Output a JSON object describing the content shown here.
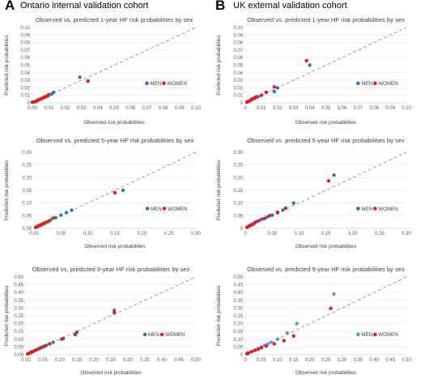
{
  "figure": {
    "panel_a": {
      "letter": "A",
      "label": "Ontario internal validation cohort"
    },
    "panel_b": {
      "letter": "B",
      "label": "UK external validation cohort"
    }
  },
  "chart_data": [
    {
      "id": "a1",
      "type": "scatter",
      "title": "Observed vs. predicted 1-year HF risk probabilities by sex",
      "xlabel": "Observed risk probabilities",
      "ylabel": "Predicted risk probabilities",
      "xlim": [
        0,
        0.1
      ],
      "ylim": [
        0,
        0.1
      ],
      "xticks": [
        "0.00",
        "0.01",
        "0.02",
        "0.03",
        "0.04",
        "0.05",
        "0.06",
        "0.07",
        "0.08",
        "0.09",
        "0.10"
      ],
      "yticks": [
        "0",
        "0.01",
        "0.02",
        "0.03",
        "0.04",
        "0.05",
        "0.06",
        "0.07",
        "0.08",
        "0.09",
        "0.10"
      ],
      "reference_line": "y = x (dashed)",
      "legend_position": "right",
      "series": [
        {
          "name": "MEN",
          "color": "#2e75b6",
          "x": [
            0.001,
            0.002,
            0.003,
            0.004,
            0.005,
            0.006,
            0.007,
            0.008,
            0.009,
            0.01,
            0.012,
            0.013,
            0.029
          ],
          "y": [
            0.001,
            0.002,
            0.003,
            0.004,
            0.005,
            0.006,
            0.007,
            0.008,
            0.009,
            0.01,
            0.012,
            0.014,
            0.034
          ]
        },
        {
          "name": "WOMEN",
          "color": "#e0201b",
          "x": [
            0.0,
            0.001,
            0.002,
            0.003,
            0.004,
            0.005,
            0.006,
            0.007,
            0.008,
            0.009,
            0.01,
            0.034
          ],
          "y": [
            0.001,
            0.001,
            0.002,
            0.003,
            0.004,
            0.005,
            0.006,
            0.007,
            0.008,
            0.009,
            0.011,
            0.029
          ]
        }
      ]
    },
    {
      "id": "b1",
      "type": "scatter",
      "title": "Observed vs. predicted 1-year HF risk probabilities by sex",
      "xlabel": "Observed risk probabilities",
      "ylabel": "Predicted risk probabilities",
      "xlim": [
        0,
        0.1
      ],
      "ylim": [
        0,
        0.1
      ],
      "xticks": [
        "0",
        "0.01",
        "0.02",
        "0.03",
        "0.04",
        "0.05",
        "0.06",
        "0.07",
        "0.08",
        "0.09",
        "0.10"
      ],
      "yticks": [
        "0",
        "0.01",
        "0.02",
        "0.03",
        "0.04",
        "0.05",
        "0.06",
        "0.07",
        "0.08",
        "0.09",
        "0.10"
      ],
      "reference_line": "y = x (dashed)",
      "legend_position": "right",
      "series": [
        {
          "name": "MEN",
          "color": "#2e75b6",
          "x": [
            0.001,
            0.002,
            0.003,
            0.004,
            0.005,
            0.006,
            0.008,
            0.018,
            0.02,
            0.04
          ],
          "y": [
            0.001,
            0.002,
            0.003,
            0.004,
            0.006,
            0.007,
            0.008,
            0.015,
            0.02,
            0.05
          ]
        },
        {
          "name": "WOMEN",
          "color": "#e0201b",
          "x": [
            0.001,
            0.002,
            0.003,
            0.004,
            0.006,
            0.007,
            0.01,
            0.013,
            0.018,
            0.038
          ],
          "y": [
            0.001,
            0.002,
            0.003,
            0.005,
            0.006,
            0.008,
            0.01,
            0.014,
            0.021,
            0.056
          ]
        }
      ]
    },
    {
      "id": "a2",
      "type": "scatter",
      "title": "Observed vs. predicted 5-year HF risk probabilities by sex",
      "xlabel": "Observed risk probabilities",
      "ylabel": "Predicted risk probabilities",
      "xlim": [
        0,
        0.3
      ],
      "ylim": [
        0,
        0.3
      ],
      "xticks": [
        "0.00",
        "0.05",
        "0.10",
        "0.15",
        "0.20",
        "0.25",
        "0.30"
      ],
      "yticks": [
        "0.00",
        "0.05",
        "0.10",
        "0.15",
        "0.20",
        "0.25",
        "0.30"
      ],
      "reference_line": "y = x (dashed)",
      "legend_position": "right",
      "series": [
        {
          "name": "MEN",
          "color": "#2e75b6",
          "x": [
            0.005,
            0.008,
            0.01,
            0.013,
            0.016,
            0.02,
            0.025,
            0.03,
            0.04,
            0.05,
            0.06,
            0.07,
            0.165
          ],
          "y": [
            0.006,
            0.008,
            0.011,
            0.014,
            0.017,
            0.021,
            0.026,
            0.032,
            0.042,
            0.052,
            0.062,
            0.072,
            0.15
          ]
        },
        {
          "name": "WOMEN",
          "color": "#e0201b",
          "x": [
            0.003,
            0.005,
            0.007,
            0.009,
            0.012,
            0.015,
            0.018,
            0.022,
            0.027,
            0.035,
            0.15
          ],
          "y": [
            0.004,
            0.006,
            0.008,
            0.01,
            0.013,
            0.016,
            0.019,
            0.023,
            0.028,
            0.04,
            0.14
          ]
        }
      ]
    },
    {
      "id": "b2",
      "type": "scatter",
      "title": "Observed vs. predicted 5-year HF risk probabilities by sex",
      "xlabel": "Observed risk probabilities",
      "ylabel": "Predicted risk probabilities",
      "xlim": [
        0,
        0.3
      ],
      "ylim": [
        0,
        0.3
      ],
      "xticks": [
        "0",
        "0.05",
        "0.10",
        "0.15",
        "0.20",
        "0.25",
        "0.30"
      ],
      "yticks": [
        "0",
        "0.05",
        "0.10",
        "0.15",
        "0.20",
        "0.25",
        "0.30"
      ],
      "reference_line": "y = x (dashed)",
      "legend_position": "right",
      "series": [
        {
          "name": "MEN",
          "color": "#2e75b6",
          "x": [
            0.004,
            0.008,
            0.012,
            0.016,
            0.02,
            0.03,
            0.04,
            0.05,
            0.06,
            0.07,
            0.09,
            0.165
          ],
          "y": [
            0.005,
            0.01,
            0.014,
            0.02,
            0.026,
            0.036,
            0.044,
            0.052,
            0.064,
            0.072,
            0.1,
            0.21
          ]
        },
        {
          "name": "WOMEN",
          "color": "#e0201b",
          "x": [
            0.003,
            0.006,
            0.01,
            0.014,
            0.018,
            0.025,
            0.035,
            0.045,
            0.06,
            0.075,
            0.155
          ],
          "y": [
            0.004,
            0.008,
            0.012,
            0.016,
            0.022,
            0.03,
            0.038,
            0.05,
            0.062,
            0.08,
            0.187
          ]
        }
      ]
    },
    {
      "id": "a3",
      "type": "scatter",
      "title": "Observed vs. predicted 9-year HF risk probabilities by sex",
      "xlabel": "Observed risk probabilities",
      "ylabel": "Predicted risk probabilities",
      "xlim": [
        0,
        0.5
      ],
      "ylim": [
        0,
        0.5
      ],
      "xticks": [
        "0.00",
        "0.05",
        "0.10",
        "0.15",
        "0.20",
        "0.25",
        "0.30",
        "0.35",
        "0.40",
        "0.45",
        "0.50"
      ],
      "yticks": [
        "0.00",
        "0.05",
        "0.10",
        "0.15",
        "0.20",
        "0.25",
        "0.30",
        "0.35",
        "0.40",
        "0.45",
        "0.50"
      ],
      "reference_line": "y = x (dashed)",
      "legend_position": "right",
      "series": [
        {
          "name": "MEN",
          "color": "#2e75b6",
          "x": [
            0.01,
            0.015,
            0.02,
            0.03,
            0.04,
            0.05,
            0.06,
            0.08,
            0.105,
            0.15,
            0.26
          ],
          "y": [
            0.01,
            0.015,
            0.02,
            0.03,
            0.04,
            0.05,
            0.06,
            0.08,
            0.1,
            0.145,
            0.285
          ]
        },
        {
          "name": "WOMEN",
          "color": "#e0201b",
          "x": [
            0.005,
            0.01,
            0.015,
            0.02,
            0.025,
            0.035,
            0.045,
            0.055,
            0.07,
            0.11,
            0.145,
            0.26
          ],
          "y": [
            0.005,
            0.01,
            0.015,
            0.02,
            0.025,
            0.035,
            0.045,
            0.055,
            0.07,
            0.105,
            0.13,
            0.27
          ]
        }
      ]
    },
    {
      "id": "b3",
      "type": "scatter",
      "title": "Observed vs. predicted 9-year HF risk probabilities by sex",
      "xlabel": "Observed risk probabilities",
      "ylabel": "Predicted risk probabilities",
      "xlim": [
        0,
        0.5
      ],
      "ylim": [
        0,
        0.5
      ],
      "xticks": [
        "0",
        "0.05",
        "0.10",
        "0.15",
        "0.20",
        "0.25",
        "0.30",
        "0.35",
        "0.40",
        "0.45",
        "0.50"
      ],
      "yticks": [
        "0",
        "0.05",
        "0.10",
        "0.15",
        "0.20",
        "0.25",
        "0.30",
        "0.35",
        "0.40",
        "0.45",
        "0.50"
      ],
      "reference_line": "y = x (dashed)",
      "legend_position": "right",
      "series": [
        {
          "name": "MEN",
          "color": "#5b9bd5",
          "x": [
            0.01,
            0.02,
            0.03,
            0.04,
            0.05,
            0.06,
            0.07,
            0.08,
            0.1,
            0.13,
            0.16,
            0.275
          ],
          "y": [
            0.01,
            0.02,
            0.03,
            0.04,
            0.05,
            0.06,
            0.07,
            0.08,
            0.1,
            0.14,
            0.2,
            0.39
          ]
        },
        {
          "name": "WOMEN",
          "color": "#e0201b",
          "x": [
            0.005,
            0.01,
            0.02,
            0.03,
            0.04,
            0.05,
            0.065,
            0.09,
            0.12,
            0.15,
            0.265
          ],
          "y": [
            0.006,
            0.012,
            0.02,
            0.028,
            0.035,
            0.045,
            0.055,
            0.07,
            0.09,
            0.12,
            0.298
          ]
        }
      ]
    }
  ]
}
